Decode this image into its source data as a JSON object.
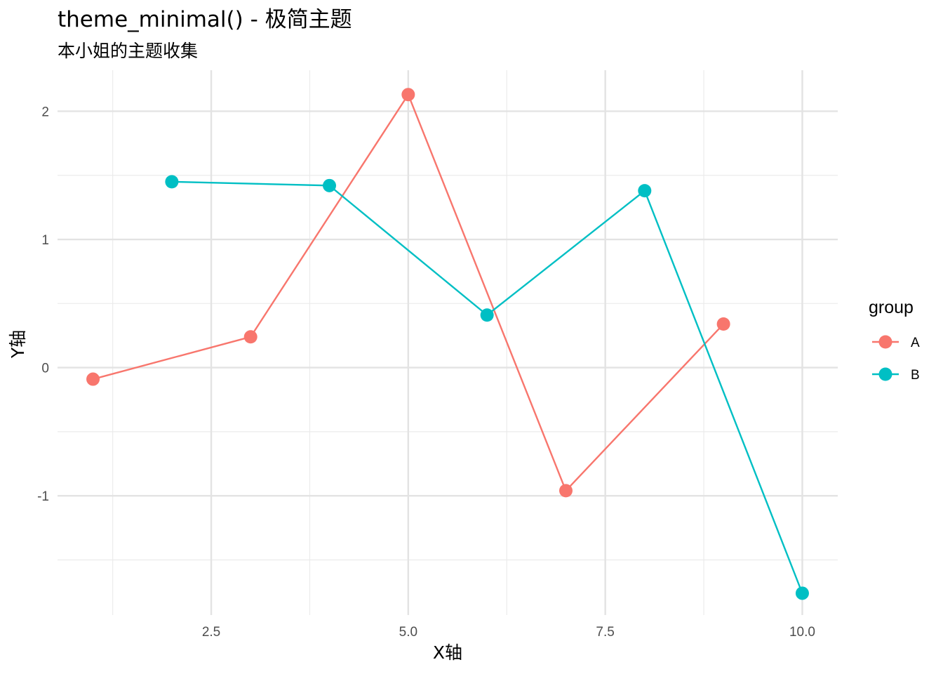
{
  "chart_data": {
    "type": "line",
    "title": "theme_minimal() - 极简主题",
    "subtitle": "本小姐的主题收集",
    "xlabel": "X轴",
    "ylabel": "Y轴",
    "xlim": [
      0.55,
      10.45
    ],
    "ylim": [
      -1.93,
      2.32
    ],
    "x_ticks": [
      2.5,
      5.0,
      7.5,
      10.0
    ],
    "x_tick_labels": [
      "2.5",
      "5.0",
      "7.5",
      "10.0"
    ],
    "x_minor": [
      1.25,
      3.75,
      6.25,
      8.75
    ],
    "y_ticks": [
      -1,
      0,
      1,
      2
    ],
    "y_tick_labels": [
      "-1",
      "0",
      "1",
      "2"
    ],
    "y_minor": [
      -1.5,
      -0.5,
      0.5,
      1.5
    ],
    "grid": true,
    "legend": {
      "title": "group",
      "position": "right"
    },
    "series": [
      {
        "name": "A",
        "color": "#F8766D",
        "x": [
          1,
          3,
          5,
          7,
          9
        ],
        "y": [
          -0.09,
          0.24,
          2.13,
          -0.96,
          0.34
        ]
      },
      {
        "name": "B",
        "color": "#00BFC4",
        "x": [
          2,
          4,
          6,
          8,
          10
        ],
        "y": [
          1.45,
          1.42,
          0.41,
          1.38,
          -1.76
        ]
      }
    ]
  }
}
